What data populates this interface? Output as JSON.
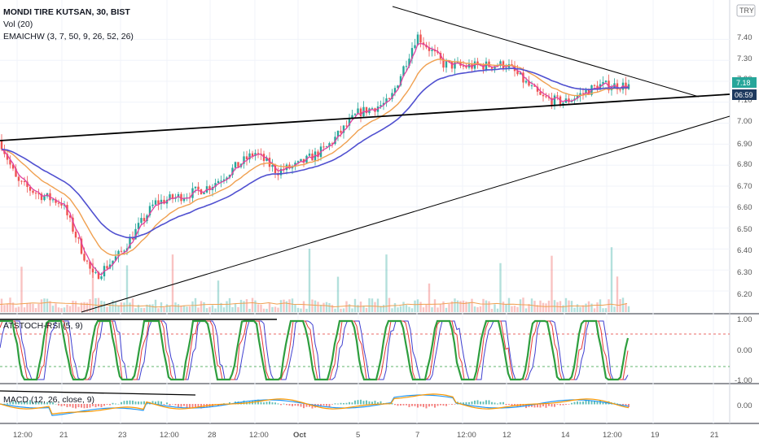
{
  "header": {
    "symbol_line": "MONDI TIRE KUTSAN, 30, BIST",
    "vol_line": "Vol (20)",
    "ema_line": "EMAICHW (3, 7, 50, 9, 26, 52, 26)",
    "stoch_line": "ATSTOCH-RSI (5, 9)",
    "macd_line": "MACD (12, 26, close, 9)",
    "currency": "TRY"
  },
  "colors": {
    "candle_up": "#26a69a",
    "candle_down": "#ef5350",
    "ema_fast": "#e040a0",
    "ema_mid": "#f0a050",
    "ema_slow": "#5050d0",
    "price_tag": "#26a69a",
    "time_tag": "#1e3a5f",
    "stoch_red": "#e53935",
    "stoch_green": "#2e9e3e",
    "stoch_blue": "#3f3fd0",
    "macd_blue": "#2196f3",
    "macd_orange": "#ff9800"
  },
  "price_axis": {
    "ticks": [
      "7.40",
      "7.30",
      "7.20",
      "7.10",
      "7.00",
      "6.90",
      "6.80",
      "6.70",
      "6.60",
      "6.50",
      "6.40",
      "6.30",
      "6.20"
    ],
    "last_price": "7.18",
    "countdown": "06:59"
  },
  "stoch_axis": {
    "ticks": [
      "1.00",
      "0.00",
      "-1.00"
    ]
  },
  "macd_axis": {
    "ticks": [
      "0.00"
    ]
  },
  "time_axis": {
    "labels": [
      "12:00",
      "21",
      "23",
      "12:00",
      "28",
      "12:00",
      "Oct",
      "5",
      "7",
      "12:00",
      "12",
      "14",
      "12:00",
      "19",
      "21"
    ]
  },
  "chart_data": {
    "type": "line",
    "title": "MONDI TIRE KUTSAN, 30, BIST",
    "ylim": [
      6.15,
      7.5
    ],
    "approx_close_path": [
      {
        "x": "Sep 18",
        "y": 6.92
      },
      {
        "x": "Sep 19",
        "y": 6.72
      },
      {
        "x": "Sep 20",
        "y": 6.66
      },
      {
        "x": "Sep 21",
        "y": 6.62
      },
      {
        "x": "Sep 22",
        "y": 6.26
      },
      {
        "x": "Sep 23",
        "y": 6.38
      },
      {
        "x": "Sep 24",
        "y": 6.62
      },
      {
        "x": "Sep 25",
        "y": 6.66
      },
      {
        "x": "Sep 28",
        "y": 6.7
      },
      {
        "x": "Sep 29",
        "y": 6.86
      },
      {
        "x": "Sep 30",
        "y": 6.77
      },
      {
        "x": "Oct 1",
        "y": 6.8
      },
      {
        "x": "Oct 2",
        "y": 6.88
      },
      {
        "x": "Oct 5",
        "y": 7.05
      },
      {
        "x": "Oct 6",
        "y": 7.1
      },
      {
        "x": "Oct 7",
        "y": 7.42
      },
      {
        "x": "Oct 8",
        "y": 7.28
      },
      {
        "x": "Oct 9",
        "y": 7.27
      },
      {
        "x": "Oct 12",
        "y": 7.28
      },
      {
        "x": "Oct 13",
        "y": 7.12
      },
      {
        "x": "Oct 14",
        "y": 7.1
      },
      {
        "x": "Oct 15",
        "y": 7.18
      },
      {
        "x": "Oct 16",
        "y": 7.18
      }
    ]
  }
}
